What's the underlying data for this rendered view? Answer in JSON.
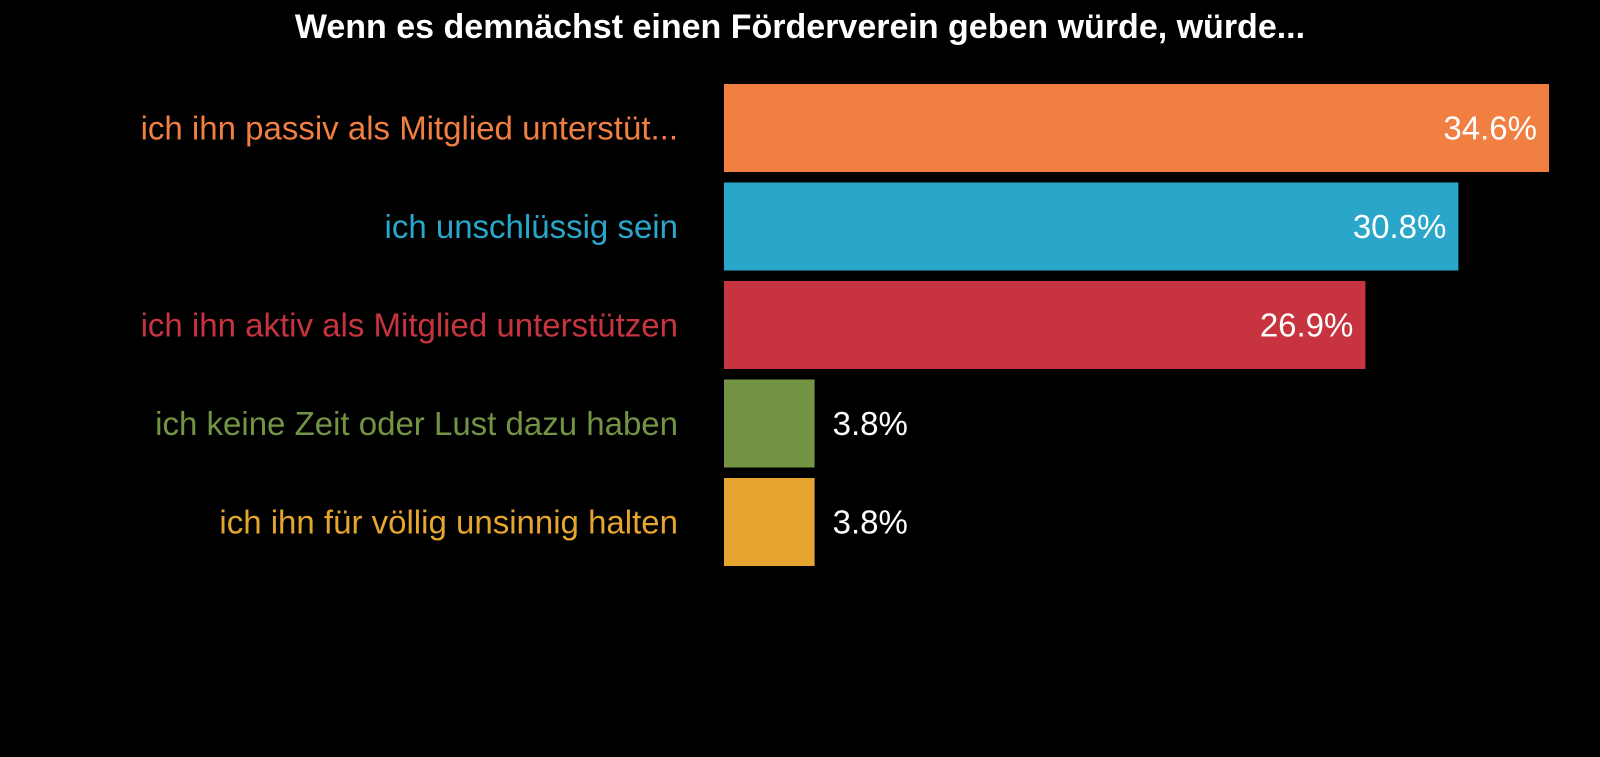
{
  "chart_data": {
    "type": "bar",
    "orientation": "horizontal",
    "title": "Wenn es demnächst einen Förderverein geben würde, würde...",
    "categories": [
      "ich ihn passiv als Mitglied unterstüt...",
      "ich unschlüssig sein",
      "ich ihn aktiv als Mitglied unterstützen",
      "ich keine Zeit oder Lust dazu haben",
      "ich ihn für völlig unsinnig halten"
    ],
    "values": [
      34.6,
      30.8,
      26.9,
      3.8,
      3.8
    ],
    "value_labels": [
      "34.6%",
      "30.8%",
      "26.9%",
      "3.8%",
      "3.8%"
    ],
    "colors": [
      "#F07F41",
      "#2AA6CB",
      "#C7343F",
      "#739444",
      "#E5A52E"
    ],
    "xlim": [
      0,
      34.6
    ],
    "grid": false,
    "legend": "none",
    "background": "#000000",
    "value_label_color": "#ffffff"
  }
}
